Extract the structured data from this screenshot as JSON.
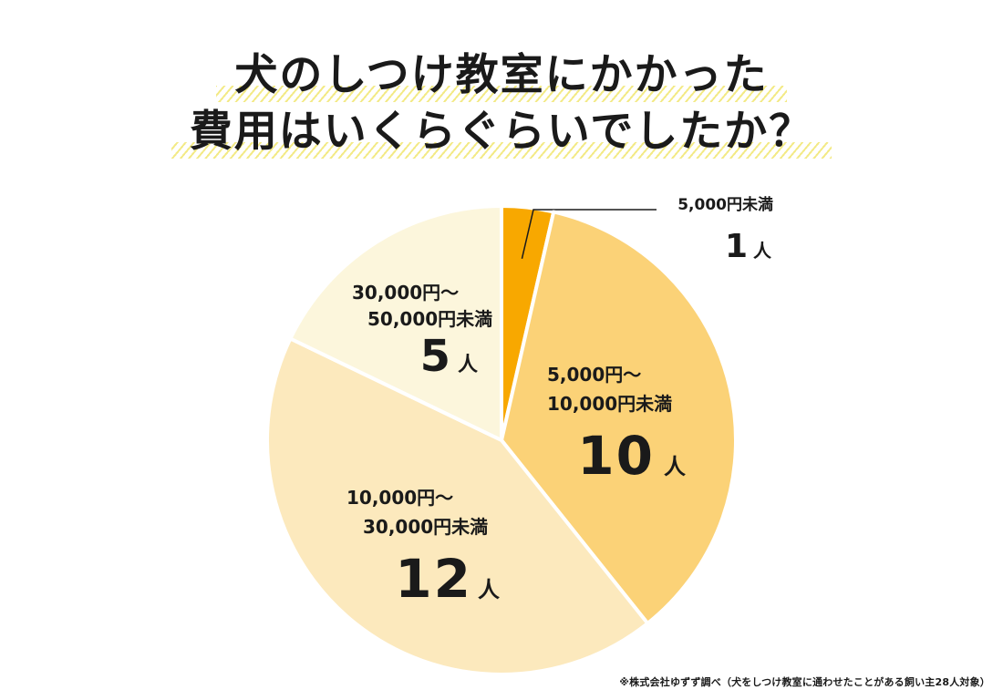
{
  "title": {
    "line1": "犬のしつけ教室にかかった",
    "line2": "費用はいくらぐらいでしたか？"
  },
  "footnote": "※株式会社ゆずず調べ（犬をしつけ教室に通わせたことがある飼い主28人対象）",
  "chart_data": {
    "type": "pie",
    "total": 28,
    "slices": [
      {
        "category_line1": "5,000円未満",
        "category_line2": "",
        "count": 1,
        "count_label": "1",
        "unit": "人",
        "color": "#f8a800"
      },
      {
        "category_line1": "5,000円〜",
        "category_line2": "10,000円未満",
        "count": 10,
        "count_label": "10",
        "unit": "人",
        "color": "#fbd277"
      },
      {
        "category_line1": "10,000円〜",
        "category_line2": "30,000円未満",
        "count": 12,
        "count_label": "12",
        "unit": "人",
        "color": "#fce9bd"
      },
      {
        "category_line1": "30,000円〜",
        "category_line2": "50,000円未満",
        "count": 5,
        "count_label": "5",
        "unit": "人",
        "color": "#fcf6dc"
      }
    ]
  }
}
